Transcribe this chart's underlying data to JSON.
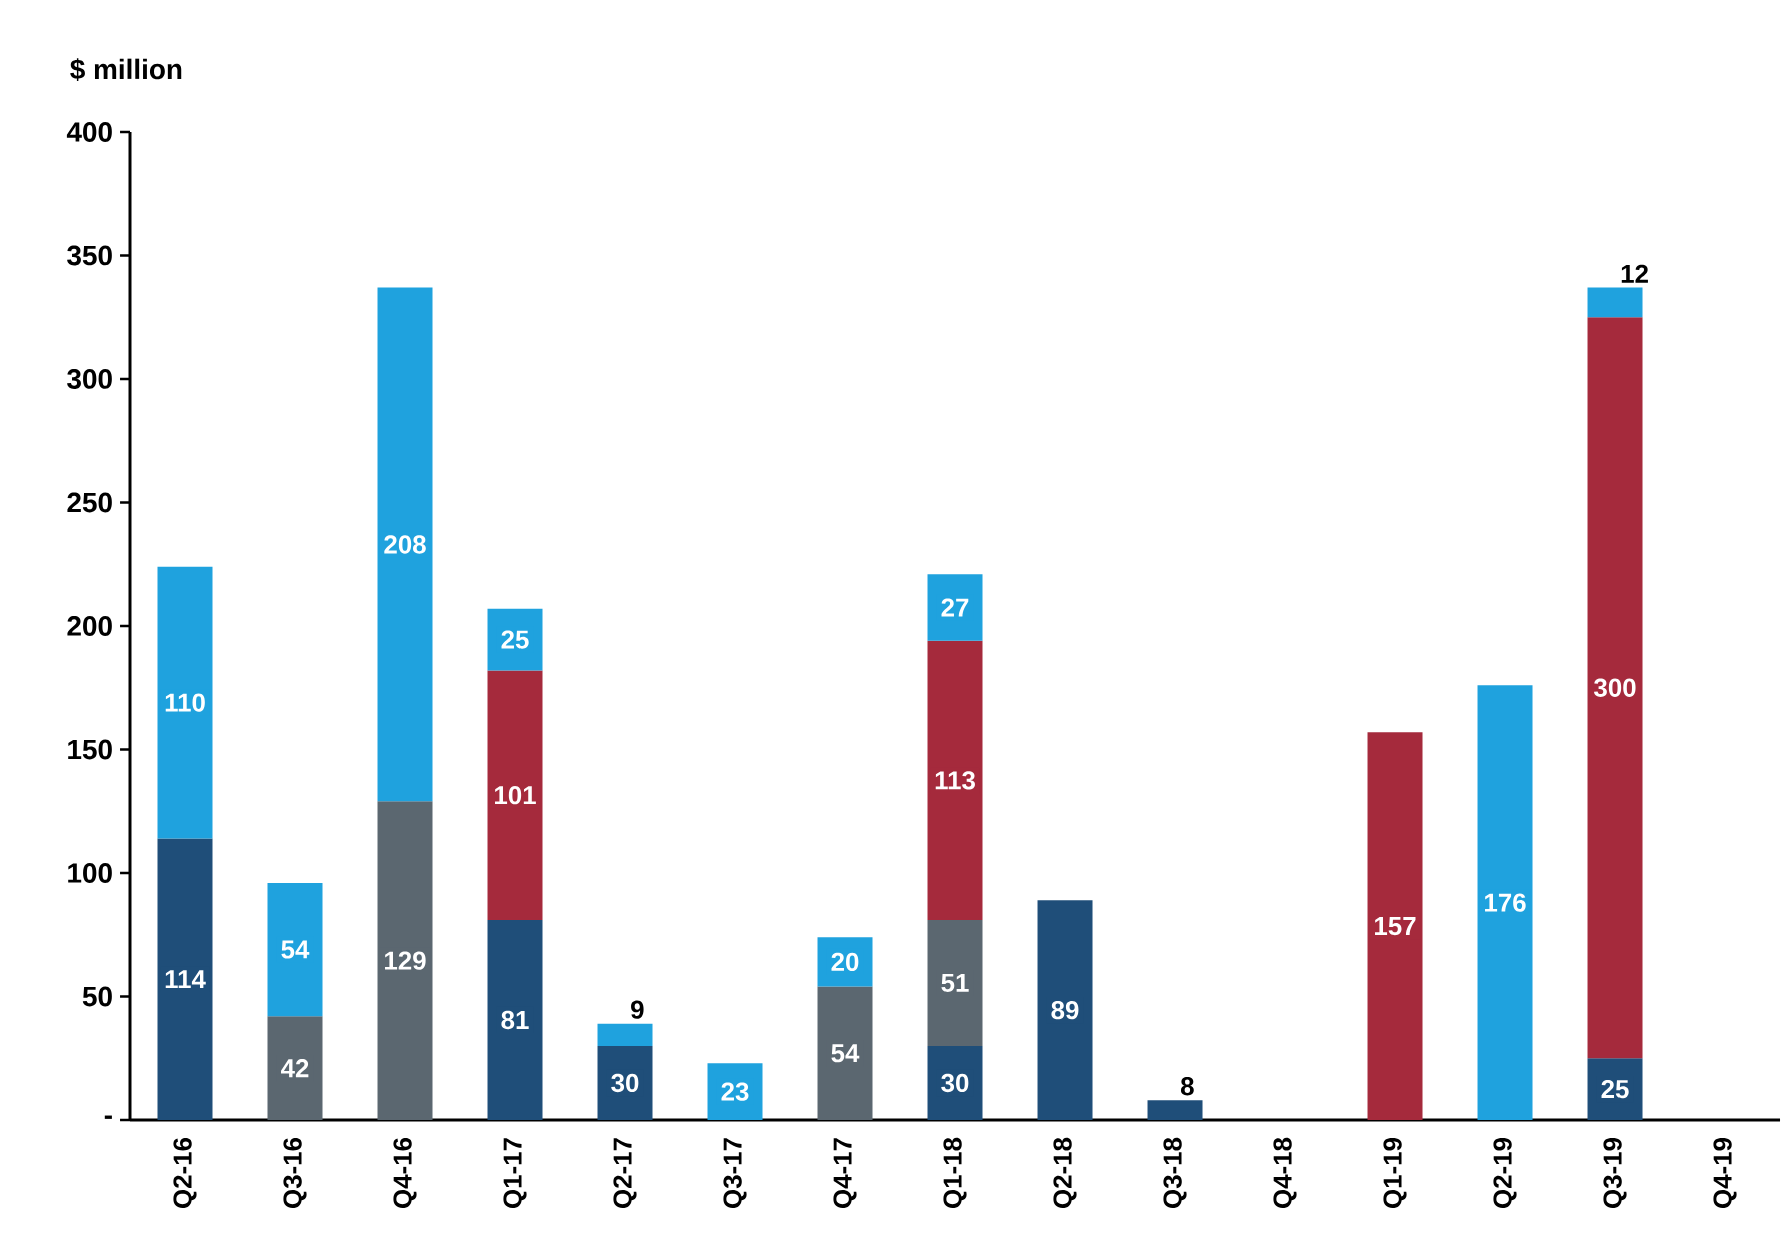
{
  "chart_data": {
    "type": "bar",
    "stacked": true,
    "data_labels": true,
    "ylabel": "$ million",
    "categories": [
      "Q2-16",
      "Q3-16",
      "Q4-16",
      "Q1-17",
      "Q2-17",
      "Q3-17",
      "Q4-17",
      "Q1-18",
      "Q2-18",
      "Q3-18",
      "Q4-18",
      "Q1-19",
      "Q2-19",
      "Q3-19",
      "Q4-19"
    ],
    "series": [
      {
        "color": "#1f4e79",
        "values": [
          114,
          null,
          null,
          81,
          30,
          null,
          null,
          30,
          89,
          8,
          null,
          null,
          null,
          25,
          null
        ]
      },
      {
        "color": "#5b6770",
        "values": [
          null,
          42,
          129,
          null,
          null,
          null,
          54,
          51,
          null,
          null,
          null,
          null,
          null,
          null,
          null
        ]
      },
      {
        "color": "#a52a3c",
        "values": [
          null,
          null,
          null,
          101,
          null,
          null,
          null,
          113,
          null,
          null,
          null,
          157,
          null,
          300,
          null
        ]
      },
      {
        "color": "#1fa2de",
        "values": [
          110,
          54,
          208,
          25,
          9,
          23,
          20,
          27,
          null,
          null,
          null,
          null,
          176,
          12,
          null
        ]
      }
    ],
    "ylim": [
      0,
      400
    ],
    "yticks": [
      {
        "value": 0,
        "label": "-"
      },
      50,
      100,
      150,
      200,
      250,
      300,
      350,
      400
    ]
  }
}
